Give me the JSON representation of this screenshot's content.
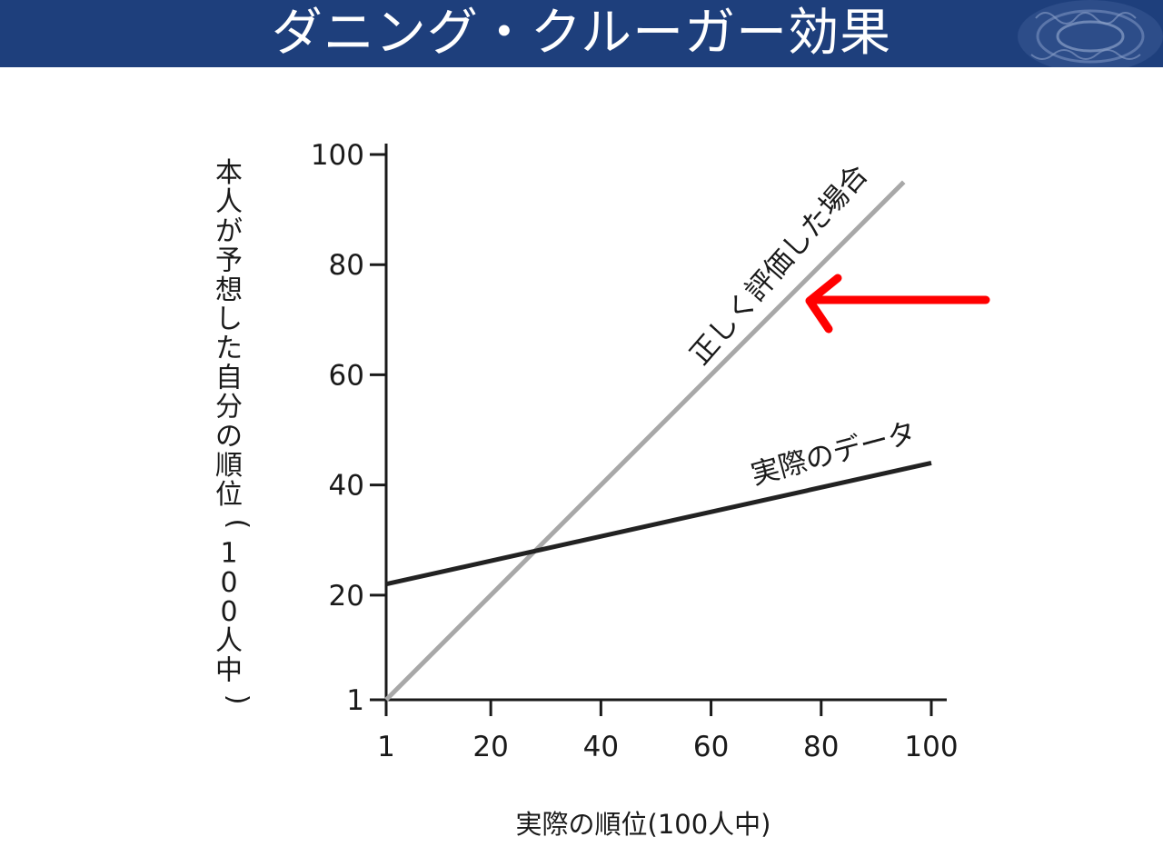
{
  "slide": {
    "title": "ダニング・クルーガー効果"
  },
  "colors": {
    "header_background": "#1e3f7c",
    "title_text": "#ffffff",
    "ideal_line": "#a8a8a8",
    "actual_line": "#222222",
    "arrow": "#ff0000"
  },
  "annotation": {
    "arrow_direction": "left",
    "points_to": "正しく評価した場合"
  },
  "chart_data": {
    "type": "line",
    "title": "",
    "xlabel": "実際の順位(100人中)",
    "ylabel": "本人が予想した自分の順位(100人中)",
    "xlim": [
      1,
      100
    ],
    "ylim": [
      1,
      100
    ],
    "x_ticks": [
      "1",
      "20",
      "40",
      "60",
      "80",
      "100"
    ],
    "y_ticks": [
      "1",
      "20",
      "40",
      "60",
      "80",
      "100"
    ],
    "grid": false,
    "legend": "none",
    "series": [
      {
        "name": "正しく評価した場合",
        "x": [
          1,
          95
        ],
        "y": [
          1,
          95
        ]
      },
      {
        "name": "実際のデータ",
        "x": [
          1,
          100
        ],
        "y": [
          22,
          44
        ]
      }
    ]
  }
}
